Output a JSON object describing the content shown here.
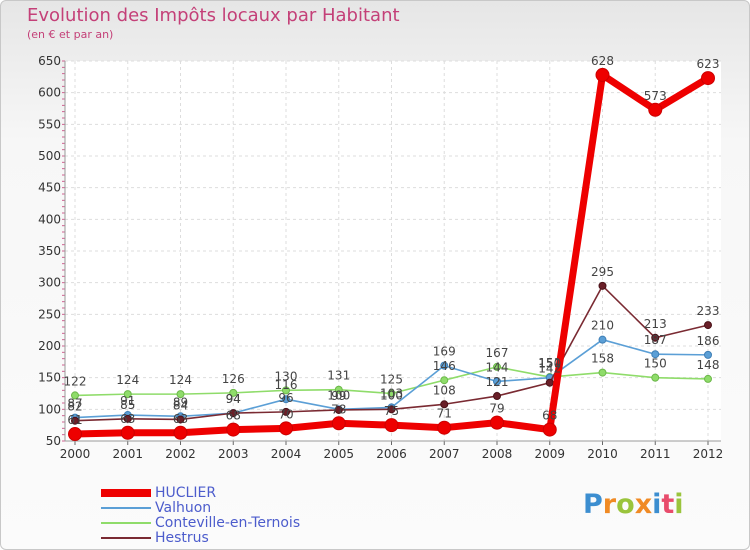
{
  "header": {
    "title": "Evolution des Impôts locaux par Habitant",
    "subtitle": "(en € et par an)"
  },
  "brand": {
    "text": "Proxiti",
    "colors": [
      "#3c8ed0",
      "#f08a24",
      "#9ac43c",
      "#f08a24",
      "#3c8ed0",
      "#e84c6c",
      "#9ac43c"
    ]
  },
  "chart_data": {
    "type": "line",
    "title": "Evolution des Impôts locaux par Habitant",
    "subtitle": "(en € et par an)",
    "xlabel": "",
    "ylabel": "",
    "ylim": [
      50,
      650
    ],
    "yticks": [
      50,
      100,
      150,
      200,
      250,
      300,
      350,
      400,
      450,
      500,
      550,
      600,
      650
    ],
    "categories": [
      "2000",
      "2001",
      "2002",
      "2003",
      "2004",
      "2005",
      "2006",
      "2007",
      "2008",
      "2009",
      "2010",
      "2011",
      "2012"
    ],
    "grid": true,
    "legend_position": "bottom-left",
    "series": [
      {
        "name": "Conteville-en-Ternois",
        "color": "#8fdc6a",
        "values": [
          122,
          124,
          124,
          126,
          130,
          131,
          125,
          146,
          167,
          151,
          158,
          150,
          148
        ],
        "labels": [
          "122",
          "124",
          "124",
          "126",
          "130",
          "131",
          "125",
          "146",
          "167",
          "151",
          "158",
          "150",
          "148"
        ]
      },
      {
        "name": "Valhuon",
        "color": "#5b9fd6",
        "values": [
          87,
          91,
          89,
          94,
          116,
          100,
          103,
          169,
          144,
          150,
          210,
          187,
          186
        ],
        "labels": [
          "87",
          "91",
          "89",
          "94",
          "116",
          "100",
          "103",
          "169",
          "144",
          "150",
          "210",
          "187",
          "186"
        ]
      },
      {
        "name": "Hestrus",
        "color": "#7a2a32",
        "values": [
          82,
          85,
          84,
          94,
          96,
          99,
          100,
          108,
          121,
          142,
          295,
          213,
          233
        ],
        "labels": [
          "82",
          "85",
          "84",
          "94",
          "96",
          "99",
          "100",
          "108",
          "121",
          "142",
          "295",
          "213",
          "233"
        ]
      },
      {
        "name": "HUCLIER",
        "color": "#ee0000",
        "values": [
          61,
          63,
          63,
          68,
          70,
          78,
          75,
          71,
          79,
          68,
          628,
          573,
          623
        ],
        "labels": [
          "61",
          "63",
          "63",
          "68",
          "70",
          "78",
          "75",
          "71",
          "79",
          "68",
          "628",
          "573",
          "623"
        ]
      }
    ]
  },
  "legend": {
    "items": [
      {
        "label": "HUCLIER",
        "color": "#ee0000"
      },
      {
        "label": "Valhuon",
        "color": "#5b9fd6"
      },
      {
        "label": "Conteville-en-Ternois",
        "color": "#8fdc6a"
      },
      {
        "label": "Hestrus",
        "color": "#7a2a32"
      }
    ]
  }
}
